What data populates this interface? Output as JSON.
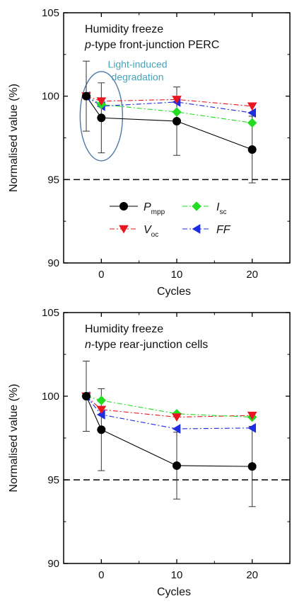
{
  "chart_data": [
    {
      "type": "line",
      "title_lines": [
        "Humidity freeze",
        "p-type front-junction PERC"
      ],
      "title_italic_prefix": "p",
      "title_rest": "-type front-junction PERC",
      "xlabel": "Cycles",
      "ylabel": "Normalised value (%)",
      "xlim": [
        -5,
        25
      ],
      "ylim": [
        90,
        105
      ],
      "xticks": [
        0,
        10,
        20
      ],
      "yticks": [
        90,
        95,
        100,
        105
      ],
      "reference_line": 95,
      "grid": false,
      "legend_placement": "lower-center",
      "annotation": "Light-induced degradation",
      "annotation_lines": [
        "Light-induced",
        "degradation"
      ],
      "series": [
        {
          "name": "Pmpp",
          "main": "P",
          "sub": "mpp",
          "color": "#000000",
          "marker": "circle",
          "dash": "solid",
          "x": [
            -2,
            0,
            10,
            20
          ],
          "y": [
            100.0,
            98.7,
            98.5,
            96.8
          ],
          "err": [
            2.1,
            2.1,
            2.05,
            2.0
          ]
        },
        {
          "name": "Voc",
          "main": "V",
          "sub": "oc",
          "color": "#e8161e",
          "marker": "triangle-down",
          "dash": "dashdot",
          "x": [
            -2,
            0,
            10,
            20
          ],
          "y": [
            100.0,
            99.7,
            99.8,
            99.4
          ]
        },
        {
          "name": "Isc",
          "main": "I",
          "sub": "sc",
          "color": "#22dd22",
          "marker": "diamond",
          "dash": "dashdot",
          "x": [
            -2,
            0,
            10,
            20
          ],
          "y": [
            100.0,
            99.5,
            99.05,
            98.4
          ]
        },
        {
          "name": "FF",
          "main": "FF",
          "sub": "",
          "color": "#1e2de0",
          "marker": "triangle-left",
          "dash": "dashdot",
          "x": [
            -2,
            0,
            10,
            20
          ],
          "y": [
            100.0,
            99.4,
            99.65,
            99.0
          ]
        }
      ]
    },
    {
      "type": "line",
      "title_lines": [
        "Humidity freeze",
        "n-type rear-junction cells"
      ],
      "title_italic_prefix": "n",
      "title_rest": "-type rear-junction cells",
      "xlabel": "Cycles",
      "ylabel": "Normalised value (%)",
      "xlim": [
        -5,
        25
      ],
      "ylim": [
        90,
        105
      ],
      "xticks": [
        0,
        10,
        20
      ],
      "yticks": [
        90,
        95,
        100,
        105
      ],
      "reference_line": 95,
      "grid": false,
      "series": [
        {
          "name": "Pmpp",
          "color": "#000000",
          "marker": "circle",
          "dash": "solid",
          "x": [
            -2,
            0,
            10,
            20
          ],
          "y": [
            100.0,
            98.0,
            95.85,
            95.8
          ],
          "err": [
            2.1,
            2.45,
            2.0,
            2.4
          ]
        },
        {
          "name": "Voc",
          "color": "#e8161e",
          "marker": "triangle-down",
          "dash": "dashdot",
          "x": [
            -2,
            0,
            10,
            20
          ],
          "y": [
            100.0,
            99.2,
            98.75,
            98.85
          ]
        },
        {
          "name": "Isc",
          "color": "#22dd22",
          "marker": "diamond",
          "dash": "dashdot",
          "x": [
            -2,
            0,
            10,
            20
          ],
          "y": [
            100.0,
            99.75,
            98.95,
            98.75
          ]
        },
        {
          "name": "FF",
          "color": "#1e2de0",
          "marker": "triangle-left",
          "dash": "dashdot",
          "x": [
            -2,
            0,
            10,
            20
          ],
          "y": [
            100.0,
            98.9,
            98.05,
            98.1
          ]
        }
      ]
    }
  ]
}
